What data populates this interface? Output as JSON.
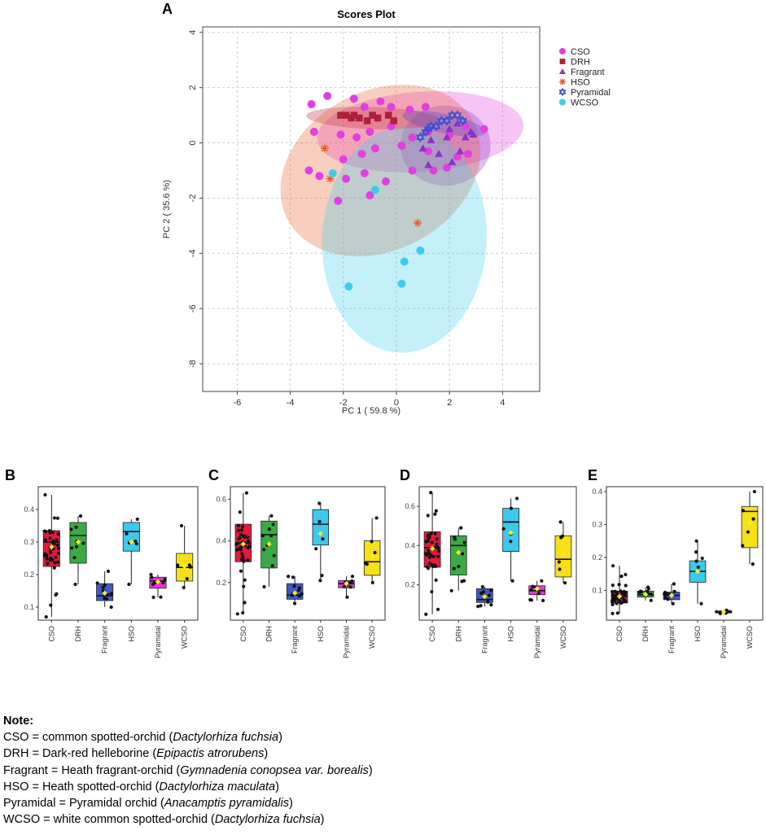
{
  "chart_data": [
    {
      "panel": "A",
      "type": "scatter",
      "title": "Scores Plot",
      "xlabel": "PC 1 ( 59.8 %)",
      "ylabel": "PC 2 ( 35.6 %)",
      "xlim": [
        -7.3,
        5.4
      ],
      "ylim": [
        -9.0,
        4.2
      ],
      "xticks": [
        -6,
        -4,
        -2,
        0,
        2,
        4
      ],
      "yticks": [
        4,
        2,
        0,
        -2,
        -4,
        -6,
        -8
      ],
      "grid": true,
      "legend_position": "top-right",
      "legend": [
        "CSO",
        "DRH",
        "Fragrant",
        "HSO",
        "Pyramidal",
        "WCSO"
      ],
      "series": [
        {
          "name": "CSO",
          "color": "#e040e0",
          "marker": "circle",
          "ellipse": {
            "cx": 0.9,
            "cy": 0.4,
            "rx": 3.9,
            "ry": 1.45,
            "angle": -4
          },
          "points": [
            [
              -3.2,
              1.4
            ],
            [
              -2.6,
              1.7
            ],
            [
              -1.6,
              1.6
            ],
            [
              -1.2,
              1.3
            ],
            [
              -0.6,
              1.5
            ],
            [
              -0.2,
              1.3
            ],
            [
              0.5,
              1.2
            ],
            [
              1.1,
              1.3
            ],
            [
              -3.1,
              0.4
            ],
            [
              -2.1,
              0.3
            ],
            [
              -1.5,
              0.2
            ],
            [
              -1.0,
              0.4
            ],
            [
              -0.2,
              0.6
            ],
            [
              0.6,
              0.2
            ],
            [
              1.2,
              0.4
            ],
            [
              2.0,
              0.3
            ],
            [
              2.6,
              0.6
            ],
            [
              3.3,
              0.5
            ],
            [
              -2.0,
              -0.6
            ],
            [
              -1.3,
              -0.4
            ],
            [
              -0.8,
              -0.2
            ],
            [
              0.2,
              -0.1
            ],
            [
              1.2,
              -0.3
            ],
            [
              1.9,
              -0.9
            ],
            [
              2.7,
              -0.4
            ],
            [
              -3.3,
              -1.0
            ],
            [
              -2.9,
              -1.2
            ],
            [
              -1.9,
              -1.3
            ],
            [
              -1.2,
              -1.1
            ],
            [
              -0.4,
              -1.4
            ],
            [
              0.6,
              -1.0
            ],
            [
              1.4,
              -1.0
            ],
            [
              2.3,
              -0.5
            ],
            [
              -2.2,
              -2.1
            ],
            [
              -1.0,
              -1.9
            ]
          ]
        },
        {
          "name": "DRH",
          "color": "#b0203a",
          "marker": "square",
          "ellipse": {
            "cx": -0.9,
            "cy": 0.9,
            "rx": 2.5,
            "ry": 0.4,
            "angle": 2
          },
          "points": [
            [
              -2.1,
              1.0
            ],
            [
              -1.9,
              1.0
            ],
            [
              -1.7,
              0.9
            ],
            [
              -1.6,
              1.0
            ],
            [
              -1.4,
              0.9
            ],
            [
              -1.1,
              0.8
            ],
            [
              -0.9,
              1.0
            ],
            [
              -0.7,
              0.9
            ],
            [
              -0.3,
              1.0
            ],
            [
              -0.1,
              0.8
            ]
          ]
        },
        {
          "name": "Fragrant",
          "color": "#8a33c8",
          "marker": "triangle",
          "ellipse": {
            "cx": 1.85,
            "cy": -0.1,
            "rx": 1.7,
            "ry": 1.45,
            "angle": 0
          },
          "points": [
            [
              1.0,
              -0.2
            ],
            [
              1.3,
              0.1
            ],
            [
              1.6,
              -0.4
            ],
            [
              1.9,
              0.2
            ],
            [
              2.1,
              -0.7
            ],
            [
              2.4,
              -0.3
            ],
            [
              2.6,
              0.2
            ],
            [
              2.8,
              0.4
            ],
            [
              1.2,
              -0.8
            ],
            [
              2.0,
              0.5
            ],
            [
              2.3,
              0.7
            ],
            [
              2.9,
              0.3
            ]
          ]
        },
        {
          "name": "HSO",
          "color": "#e85d2a",
          "marker": "star",
          "ellipse": {
            "cx": -0.6,
            "cy": -1.0,
            "rx": 3.0,
            "ry": 3.8,
            "angle": 62
          },
          "points": [
            [
              -2.7,
              -0.2
            ],
            [
              -2.5,
              -1.3
            ],
            [
              0.8,
              -2.9
            ]
          ]
        },
        {
          "name": "Pyramidal",
          "color": "#3a4fd0",
          "marker": "hexagram",
          "ellipse": {
            "cx": 1.8,
            "cy": 0.7,
            "rx": 1.6,
            "ry": 0.35,
            "angle": 12
          },
          "points": [
            [
              0.9,
              0.2
            ],
            [
              1.1,
              0.4
            ],
            [
              1.3,
              0.6
            ],
            [
              1.5,
              0.6
            ],
            [
              1.7,
              0.8
            ],
            [
              1.9,
              0.8
            ],
            [
              2.1,
              1.0
            ],
            [
              2.3,
              1.0
            ],
            [
              2.5,
              0.8
            ],
            [
              1.2,
              0.5
            ]
          ]
        },
        {
          "name": "WCSO",
          "color": "#3dcdea",
          "marker": "circle",
          "ellipse": {
            "cx": 0.3,
            "cy": -3.5,
            "rx": 3.1,
            "ry": 4.1,
            "angle": 3
          },
          "points": [
            [
              -2.4,
              -1.1
            ],
            [
              -0.8,
              -1.7
            ],
            [
              0.3,
              -4.3
            ],
            [
              0.9,
              -3.9
            ],
            [
              0.2,
              -5.1
            ],
            [
              -1.8,
              -5.2
            ]
          ]
        }
      ]
    },
    {
      "panel": "B",
      "type": "box",
      "categories": [
        "CSO",
        "DRH",
        "Fragrant",
        "HSO",
        "Pyramidal",
        "WCSO"
      ],
      "colors": [
        "#e8173d",
        "#3aaa45",
        "#4158c8",
        "#3dc8ee",
        "#e436d9",
        "#f5e01a"
      ],
      "yticks": [
        0.1,
        0.2,
        0.3,
        0.4
      ],
      "ylim": [
        0.06,
        0.47
      ],
      "boxes": [
        {
          "q1": 0.225,
          "median": 0.3,
          "q3": 0.335,
          "mean": 0.285,
          "low": 0.07,
          "high": 0.445
        },
        {
          "q1": 0.235,
          "median": 0.32,
          "q3": 0.36,
          "mean": 0.3,
          "low": 0.17,
          "high": 0.38
        },
        {
          "q1": 0.12,
          "median": 0.135,
          "q3": 0.172,
          "mean": 0.143,
          "low": 0.1,
          "high": 0.21
        },
        {
          "q1": 0.272,
          "median": 0.332,
          "q3": 0.36,
          "mean": 0.3,
          "low": 0.17,
          "high": 0.37
        },
        {
          "q1": 0.158,
          "median": 0.18,
          "q3": 0.192,
          "mean": 0.178,
          "low": 0.13,
          "high": 0.2
        },
        {
          "q1": 0.18,
          "median": 0.222,
          "q3": 0.265,
          "mean": 0.225,
          "low": 0.16,
          "high": 0.35
        }
      ]
    },
    {
      "panel": "C",
      "type": "box",
      "categories": [
        "CSO",
        "DRH",
        "Fragrant",
        "HSO",
        "Pyramidal",
        "WCSO"
      ],
      "colors": [
        "#e8173d",
        "#3aaa45",
        "#4158c8",
        "#3dc8ee",
        "#e436d9",
        "#f5e01a"
      ],
      "yticks": [
        0.2,
        0.4,
        0.6
      ],
      "ylim": [
        0.02,
        0.66
      ],
      "boxes": [
        {
          "q1": 0.3,
          "median": 0.39,
          "q3": 0.48,
          "mean": 0.385,
          "low": 0.05,
          "high": 0.63
        },
        {
          "q1": 0.27,
          "median": 0.43,
          "q3": 0.495,
          "mean": 0.385,
          "low": 0.18,
          "high": 0.52
        },
        {
          "q1": 0.12,
          "median": 0.14,
          "q3": 0.195,
          "mean": 0.15,
          "low": 0.1,
          "high": 0.23
        },
        {
          "q1": 0.38,
          "median": 0.48,
          "q3": 0.55,
          "mean": 0.435,
          "low": 0.21,
          "high": 0.58
        },
        {
          "q1": 0.175,
          "median": 0.195,
          "q3": 0.21,
          "mean": 0.195,
          "low": 0.13,
          "high": 0.23
        },
        {
          "q1": 0.235,
          "median": 0.3,
          "q3": 0.4,
          "mean": 0.325,
          "low": 0.2,
          "high": 0.51
        }
      ]
    },
    {
      "panel": "D",
      "type": "box",
      "categories": [
        "CSO",
        "DRH",
        "Fragrant",
        "HSO",
        "Pyramidal",
        "WCSO"
      ],
      "colors": [
        "#e8173d",
        "#3aaa45",
        "#4158c8",
        "#3dc8ee",
        "#e436d9",
        "#f5e01a"
      ],
      "yticks": [
        0.2,
        0.4,
        0.6
      ],
      "ylim": [
        0.02,
        0.7
      ],
      "boxes": [
        {
          "q1": 0.29,
          "median": 0.39,
          "q3": 0.47,
          "mean": 0.385,
          "low": 0.05,
          "high": 0.67
        },
        {
          "q1": 0.25,
          "median": 0.4,
          "q3": 0.45,
          "mean": 0.365,
          "low": 0.17,
          "high": 0.49
        },
        {
          "q1": 0.11,
          "median": 0.125,
          "q3": 0.18,
          "mean": 0.14,
          "low": 0.09,
          "high": 0.19
        },
        {
          "q1": 0.37,
          "median": 0.52,
          "q3": 0.59,
          "mean": 0.465,
          "low": 0.22,
          "high": 0.64
        },
        {
          "q1": 0.15,
          "median": 0.17,
          "q3": 0.195,
          "mean": 0.18,
          "low": 0.12,
          "high": 0.22
        },
        {
          "q1": 0.24,
          "median": 0.33,
          "q3": 0.45,
          "mean": 0.355,
          "low": 0.21,
          "high": 0.52
        }
      ]
    },
    {
      "panel": "E",
      "type": "box",
      "categories": [
        "CSO",
        "DRH",
        "Fragrant",
        "HSO",
        "Pyramidal",
        "WCSO"
      ],
      "colors": [
        "#e8173d",
        "#3aaa45",
        "#4158c8",
        "#3dc8ee",
        "#e436d9",
        "#f5e01a"
      ],
      "yticks": [
        0.1,
        0.2,
        0.3,
        0.4
      ],
      "ylim": [
        0.01,
        0.415
      ],
      "boxes": [
        {
          "q1": 0.062,
          "median": 0.082,
          "q3": 0.098,
          "mean": 0.082,
          "low": 0.03,
          "high": 0.175
        },
        {
          "q1": 0.08,
          "median": 0.087,
          "q3": 0.098,
          "mean": 0.088,
          "low": 0.07,
          "high": 0.11
        },
        {
          "q1": 0.072,
          "median": 0.085,
          "q3": 0.095,
          "mean": 0.085,
          "low": 0.06,
          "high": 0.12
        },
        {
          "q1": 0.125,
          "median": 0.158,
          "q3": 0.19,
          "mean": 0.158,
          "low": 0.06,
          "high": 0.25
        },
        {
          "q1": 0.032,
          "median": 0.035,
          "q3": 0.038,
          "mean": 0.035,
          "low": 0.03,
          "high": 0.04
        },
        {
          "q1": 0.23,
          "median": 0.34,
          "q3": 0.355,
          "mean": 0.305,
          "low": 0.18,
          "high": 0.4
        }
      ]
    }
  ],
  "note": {
    "title": "Note:",
    "lines": [
      {
        "abbr": "CSO = common spotted-orchid (",
        "latin": "Dactylorhiza fuchsia",
        "end": ")"
      },
      {
        "abbr": "DRH = Dark-red helleborine (",
        "latin": "Epipactis atrorubens",
        "end": ")"
      },
      {
        "abbr": "Fragrant = Heath fragrant-orchid (",
        "latin": "Gymnadenia conopsea var. borealis",
        "end": ")"
      },
      {
        "abbr": "HSO = Heath spotted-orchid (",
        "latin": "Dactylorhiza maculata",
        "end": ")"
      },
      {
        "abbr": "Pyramidal = Pyramidal orchid (",
        "latin": "Anacamptis pyramidalis",
        "end": ")"
      },
      {
        "abbr": "WCSO = white common spotted-orchid (",
        "latin": "Dactylorhiza fuchsia",
        "end": ")"
      }
    ]
  }
}
